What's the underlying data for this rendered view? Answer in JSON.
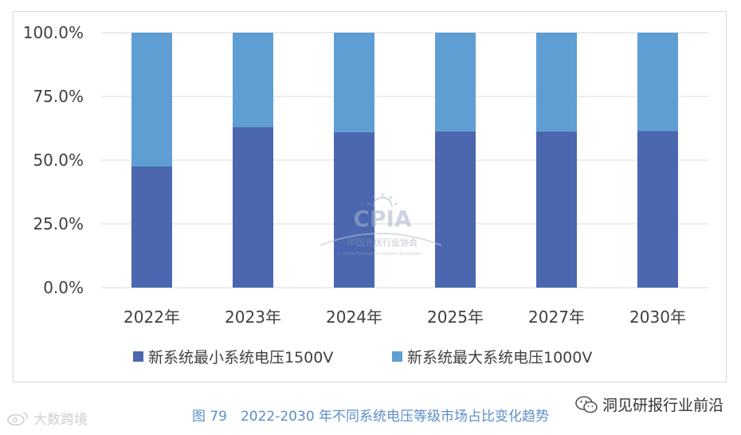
{
  "chart_data": {
    "type": "bar",
    "stacked": true,
    "categories": [
      "2022年",
      "2023年",
      "2024年",
      "2025年",
      "2027年",
      "2030年"
    ],
    "series": [
      {
        "name": "新系统最小系统电压1500V",
        "color": "#4a67b0",
        "values": [
          47.5,
          63.0,
          61.0,
          61.3,
          61.3,
          61.5
        ]
      },
      {
        "name": "新系统最大系统电压1000V",
        "color": "#5f9ed3",
        "values": [
          52.5,
          37.0,
          39.0,
          38.7,
          38.7,
          38.5
        ]
      }
    ],
    "ylim": [
      0,
      100
    ],
    "yticks": [
      0,
      25,
      50,
      75,
      100
    ],
    "ytick_labels": [
      "0.0%",
      "25.0%",
      "50.0%",
      "75.0%",
      "100.0%"
    ],
    "grid": true,
    "legend": "bottom"
  },
  "caption": "图 79　2022-2030 年不同系统电压等级市场占比变化趋势",
  "source": {
    "label": "洞见研报行业前沿",
    "icon": "wechat-icon"
  },
  "watermark_corner": {
    "label": "大数跨境",
    "icon": "weibo-icon"
  },
  "watermark_logo": {
    "text": "CPIA",
    "subtitle": "中国光伏行业协会",
    "subtitle2": "China Photovoltaic Industry Association"
  }
}
